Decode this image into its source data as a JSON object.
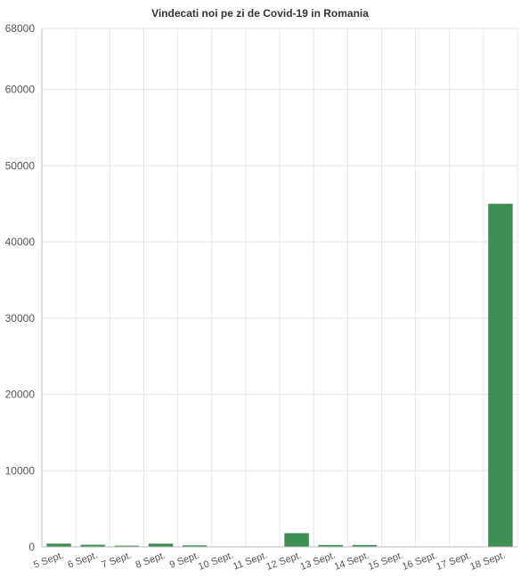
{
  "chart_data": {
    "type": "bar",
    "title": "Vindecati noi pe zi de Covid-19 in Romania",
    "xlabel": "",
    "ylabel": "",
    "categories": [
      "5 Sept.",
      "6 Sept.",
      "7 Sept.",
      "8 Sept.",
      "9 Sept.",
      "10 Sept.",
      "11 Sept.",
      "12 Sept.",
      "13 Sept.",
      "14 Sept.",
      "15 Sept.",
      "16 Sept.",
      "17 Sept.",
      "18 Sept."
    ],
    "values": [
      430,
      280,
      160,
      420,
      200,
      0,
      0,
      1800,
      250,
      250,
      0,
      0,
      0,
      45000
    ],
    "ylim": [
      0,
      68000
    ],
    "yticks": [
      0,
      10000,
      20000,
      30000,
      40000,
      50000,
      60000,
      68000
    ],
    "grid": true,
    "colors": {
      "bar": "#3e8e53"
    }
  }
}
